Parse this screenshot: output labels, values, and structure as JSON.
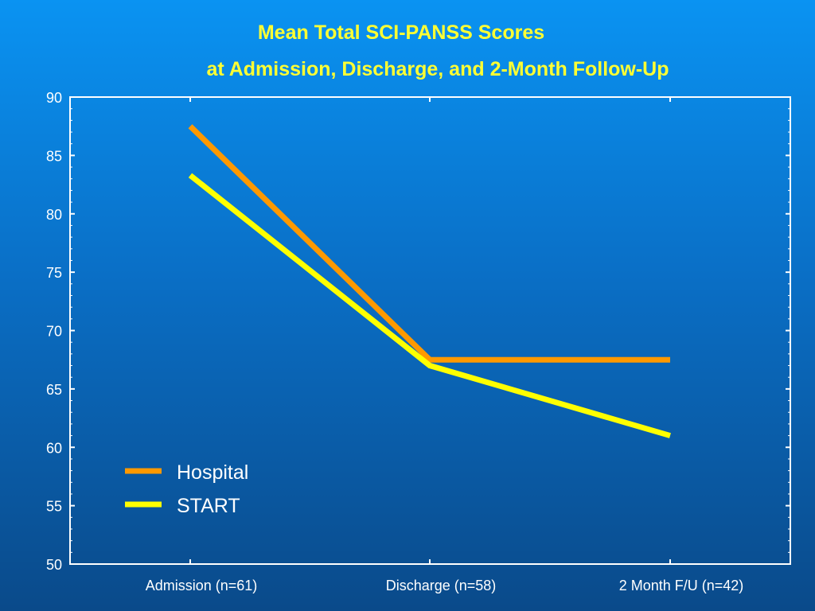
{
  "chart_data": {
    "type": "line",
    "title": "Mean Total SCI-PANSS Scores",
    "subtitle": "at Admission, Discharge, and 2-Month Follow-Up",
    "categories": [
      "Admission (n=61)",
      "Discharge (n=58)",
      "2 Month F/U (n=42)"
    ],
    "series": [
      {
        "name": "Hospital",
        "values": [
          87.5,
          67.5,
          67.5
        ],
        "color": "#ff9900"
      },
      {
        "name": "START",
        "values": [
          83.3,
          67.0,
          61.0
        ],
        "color": "#ffff00"
      }
    ],
    "yticks": [
      "50",
      "55",
      "60",
      "65",
      "70",
      "75",
      "80",
      "85",
      "90"
    ],
    "ylim": [
      50,
      90
    ],
    "xlabel": "",
    "ylabel": "",
    "grid": false,
    "legend_position": "bottom-left"
  }
}
